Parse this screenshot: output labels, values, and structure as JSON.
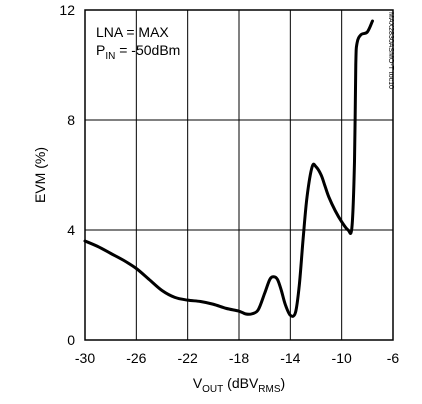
{
  "chart_data": {
    "type": "line",
    "title": "",
    "xlabel": {
      "base": "V",
      "sub": "OUT",
      "mid": " (dBV",
      "sub2": "RMS",
      "end": ")"
    },
    "ylabel": "EVM (%)",
    "xlim": [
      -30,
      -6
    ],
    "ylim": [
      0,
      12
    ],
    "xticks": [
      "-30",
      "-26",
      "-22",
      "-18",
      "-14",
      "-10",
      "-6"
    ],
    "yticks": [
      "0",
      "4",
      "8",
      "12"
    ],
    "grid": true,
    "annotation": {
      "line1": "LNA = MAX",
      "line2_base": "P",
      "line2_sub": "IN",
      "line2_end": " = -50dBm"
    },
    "watermark": "MAX2830ASMO-T toc10",
    "series": [
      {
        "x": [
          -30,
          -29,
          -28,
          -27,
          -26,
          -25,
          -24,
          -23,
          -22,
          -21,
          -20,
          -19,
          -18,
          -17.5,
          -17,
          -16.5,
          -16,
          -15.6,
          -15.3,
          -15,
          -14.7,
          -14.4,
          -14,
          -13.6,
          -13.3,
          -13,
          -12.7,
          -12.3,
          -12,
          -11.6,
          -11.3,
          -11,
          -10.5,
          -10,
          -9.5,
          -9.2,
          -9.0,
          -8.9,
          -8.8,
          -8.5,
          -8.0,
          -7.6
        ],
        "values": [
          3.6,
          3.4,
          3.15,
          2.9,
          2.6,
          2.2,
          1.8,
          1.55,
          1.45,
          1.4,
          1.3,
          1.15,
          1.05,
          0.95,
          0.95,
          1.1,
          1.7,
          2.2,
          2.3,
          2.2,
          1.8,
          1.3,
          0.9,
          1.0,
          2.0,
          3.7,
          5.2,
          6.3,
          6.3,
          6.0,
          5.6,
          5.2,
          4.7,
          4.3,
          4.0,
          4.1,
          6.5,
          10.0,
          10.8,
          11.1,
          11.2,
          11.6
        ]
      }
    ]
  }
}
